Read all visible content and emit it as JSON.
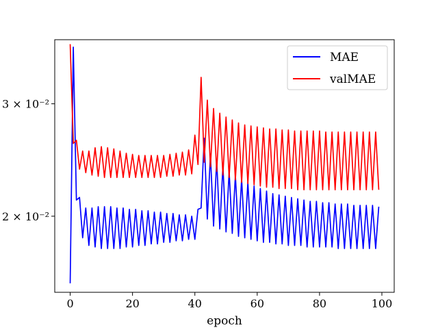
{
  "chart_data": {
    "type": "line",
    "title": "",
    "xlabel": "epoch",
    "ylabel": "",
    "yscale": "log",
    "grid": false,
    "legend_position": "top-right",
    "xlim": [
      -4.95,
      103.95
    ],
    "ylim": [
      0.0152,
      0.0378
    ],
    "x_ticks": [
      0,
      20,
      40,
      60,
      80,
      100
    ],
    "x_tick_labels": [
      "0",
      "20",
      "40",
      "60",
      "80",
      "100"
    ],
    "y_ticks": [
      0.03,
      0.02
    ],
    "y_tick_labels": [
      "3 × 10⁻²",
      "2 × 10⁻²"
    ],
    "series": [
      {
        "name": "MAE",
        "color": "#0000ff",
        "x": [
          0,
          1,
          2,
          3,
          4,
          5,
          6,
          7,
          8,
          9,
          10,
          11,
          12,
          13,
          14,
          15,
          16,
          17,
          18,
          19,
          20,
          21,
          22,
          23,
          24,
          25,
          26,
          27,
          28,
          29,
          30,
          31,
          32,
          33,
          34,
          35,
          36,
          37,
          38,
          39,
          40,
          41,
          42,
          43,
          44,
          45,
          46,
          47,
          48,
          49,
          50,
          51,
          52,
          53,
          54,
          55,
          56,
          57,
          58,
          59,
          60,
          61,
          62,
          63,
          64,
          65,
          66,
          67,
          68,
          69,
          70,
          71,
          72,
          73,
          74,
          75,
          76,
          77,
          78,
          79,
          80,
          81,
          82,
          83,
          84,
          85,
          86,
          87,
          88,
          89,
          90,
          91,
          92,
          93,
          94,
          95,
          96,
          97,
          98,
          99
        ],
        "values": [
          0.0157,
          0.0368,
          0.0212,
          0.0214,
          0.0185,
          0.0206,
          0.018,
          0.0206,
          0.0179,
          0.0207,
          0.0178,
          0.0207,
          0.0178,
          0.0207,
          0.0178,
          0.0206,
          0.0178,
          0.0206,
          0.0179,
          0.0205,
          0.0179,
          0.0205,
          0.018,
          0.0204,
          0.018,
          0.0204,
          0.0181,
          0.0203,
          0.0181,
          0.0203,
          0.0182,
          0.0202,
          0.0182,
          0.0202,
          0.0183,
          0.0201,
          0.0183,
          0.0201,
          0.0184,
          0.02,
          0.0184,
          0.0205,
          0.0206,
          0.0265,
          0.0198,
          0.025,
          0.0193,
          0.0245,
          0.0191,
          0.024,
          0.0189,
          0.0235,
          0.0188,
          0.0232,
          0.0186,
          0.0229,
          0.0185,
          0.0226,
          0.0184,
          0.0223,
          0.0183,
          0.0221,
          0.0182,
          0.0219,
          0.0182,
          0.0217,
          0.0181,
          0.0216,
          0.0181,
          0.0215,
          0.018,
          0.0214,
          0.018,
          0.0213,
          0.018,
          0.0212,
          0.0179,
          0.0211,
          0.0179,
          0.0211,
          0.0179,
          0.021,
          0.0179,
          0.021,
          0.0179,
          0.0209,
          0.0178,
          0.0209,
          0.0178,
          0.0209,
          0.0178,
          0.0208,
          0.0178,
          0.0208,
          0.0178,
          0.0208,
          0.0178,
          0.0208,
          0.0178,
          0.0207
        ]
      },
      {
        "name": "valMAE",
        "color": "#ff0000",
        "x": [
          0,
          1,
          2,
          3,
          4,
          5,
          6,
          7,
          8,
          9,
          10,
          11,
          12,
          13,
          14,
          15,
          16,
          17,
          18,
          19,
          20,
          21,
          22,
          23,
          24,
          25,
          26,
          27,
          28,
          29,
          30,
          31,
          32,
          33,
          34,
          35,
          36,
          37,
          38,
          39,
          40,
          41,
          42,
          43,
          44,
          45,
          46,
          47,
          48,
          49,
          50,
          51,
          52,
          53,
          54,
          55,
          56,
          57,
          58,
          59,
          60,
          61,
          62,
          63,
          64,
          65,
          66,
          67,
          68,
          69,
          70,
          71,
          72,
          73,
          74,
          75,
          76,
          77,
          78,
          79,
          80,
          81,
          82,
          83,
          84,
          85,
          86,
          87,
          88,
          89,
          90,
          91,
          92,
          93,
          94,
          95,
          96,
          97,
          98,
          99
        ],
        "values": [
          0.0372,
          0.026,
          0.0263,
          0.0237,
          0.0253,
          0.0234,
          0.0253,
          0.0232,
          0.0256,
          0.0231,
          0.0257,
          0.023,
          0.0256,
          0.023,
          0.0255,
          0.023,
          0.0253,
          0.023,
          0.0251,
          0.023,
          0.025,
          0.023,
          0.0249,
          0.023,
          0.0249,
          0.023,
          0.0249,
          0.023,
          0.0249,
          0.023,
          0.0249,
          0.0231,
          0.025,
          0.0231,
          0.0251,
          0.0232,
          0.0252,
          0.0232,
          0.0254,
          0.0233,
          0.0268,
          0.0241,
          0.033,
          0.0243,
          0.0304,
          0.0239,
          0.0295,
          0.0235,
          0.029,
          0.0232,
          0.0286,
          0.023,
          0.0283,
          0.0228,
          0.028,
          0.0226,
          0.0278,
          0.0225,
          0.0277,
          0.0224,
          0.0276,
          0.0223,
          0.0275,
          0.0222,
          0.0274,
          0.0222,
          0.0274,
          0.0221,
          0.0273,
          0.0221,
          0.0273,
          0.0221,
          0.0272,
          0.022,
          0.0272,
          0.022,
          0.0272,
          0.022,
          0.0272,
          0.022,
          0.0272,
          0.022,
          0.0271,
          0.022,
          0.0271,
          0.022,
          0.0271,
          0.022,
          0.0271,
          0.022,
          0.0271,
          0.022,
          0.0271,
          0.022,
          0.0271,
          0.022,
          0.0271,
          0.022,
          0.0271,
          0.022
        ]
      }
    ]
  }
}
